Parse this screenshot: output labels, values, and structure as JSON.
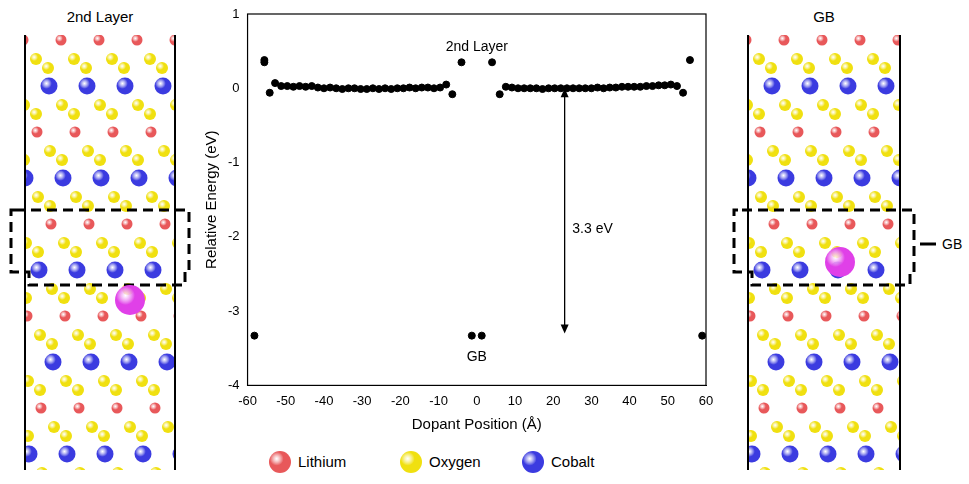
{
  "chart_data": {
    "type": "scatter",
    "x_label": "Dopant Position (Å)",
    "y_label": "Relative Energy (eV)",
    "x": [
      -58.2,
      -55.6,
      -55.6,
      -54.2,
      -52.8,
      -51.2,
      -49.6,
      -48,
      -46.4,
      -44.8,
      -43.2,
      -41.6,
      -40,
      -38.4,
      -36.8,
      -35.2,
      -33.6,
      -32,
      -30.4,
      -28.8,
      -27.2,
      -25.6,
      -24,
      -22.4,
      -20.8,
      -19.2,
      -17.6,
      -16,
      -14.4,
      -12.8,
      -11.2,
      -9.6,
      -8,
      -6.4,
      -4,
      -1.3,
      1.3,
      4,
      6,
      7.6,
      9.2,
      10.8,
      12.4,
      14,
      15.6,
      17.2,
      18.8,
      20.4,
      22,
      23.6,
      25.2,
      26.8,
      28.4,
      30,
      31.6,
      33.2,
      34.8,
      36.4,
      38,
      39.6,
      41.2,
      42.8,
      44.4,
      46,
      47.6,
      49.2,
      50.8,
      52.4,
      54,
      55.8,
      59
    ],
    "values": [
      -3.33,
      0.38,
      0.35,
      -0.06,
      0.07,
      0.03,
      0.03,
      0.02,
      0.03,
      0.02,
      0.03,
      0.01,
      0,
      0.01,
      0,
      -0.01,
      0,
      0,
      -0.01,
      -0.01,
      0,
      -0.01,
      0,
      -0.01,
      0,
      0,
      0.01,
      0,
      0.01,
      0.01,
      0,
      0.01,
      0.05,
      -0.08,
      0.35,
      -3.33,
      -3.33,
      0.35,
      -0.08,
      0.02,
      0.01,
      0,
      0,
      0,
      0,
      -0.01,
      0,
      0,
      0,
      0,
      0,
      0,
      0,
      0,
      0.01,
      0,
      0.01,
      0.01,
      0.02,
      0.02,
      0.02,
      0.02,
      0.03,
      0.03,
      0.04,
      0.04,
      0.05,
      0.03,
      -0.06,
      0.38,
      -3.33
    ],
    "color": "#000000",
    "marker": "circle",
    "xlim": [
      -60,
      60
    ],
    "xticks": [
      -60,
      -50,
      -40,
      -30,
      -20,
      -10,
      0,
      10,
      20,
      30,
      40,
      50,
      60
    ],
    "ylim": [
      -4,
      1
    ],
    "yticks": [
      -4,
      -3,
      -2,
      -1,
      0,
      1
    ],
    "grid": false,
    "annotations": [
      {
        "text": "2nd Layer",
        "x": 0,
        "y": 0.55
      },
      {
        "text": "GB",
        "x": 0,
        "y": -3.62
      },
      {
        "text": "3.3 eV",
        "x": 25,
        "y": -1.9
      }
    ],
    "arrow": {
      "x": 23,
      "from": 0,
      "to": -3.3
    }
  },
  "panels": [
    {
      "title": "2nd Layer"
    },
    {
      "title": "GB",
      "marker_label": "GB"
    }
  ],
  "species": [
    {
      "name": "Lithium",
      "color": "#e8585a"
    },
    {
      "name": "Oxygen",
      "color": "#f0e010"
    },
    {
      "name": "Cobalt",
      "color": "#3b3be0"
    }
  ]
}
